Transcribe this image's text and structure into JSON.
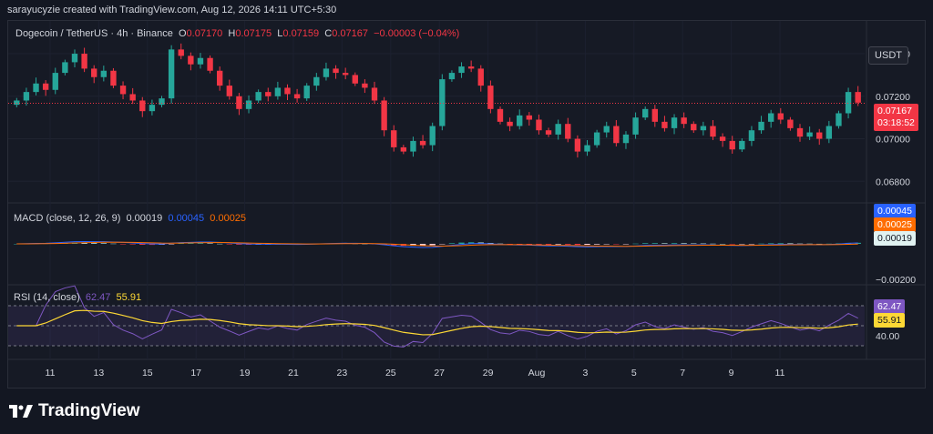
{
  "header": {
    "text": "sarayucyzie created with TradingView.com, Aug 12, 2026 14:11 UTC+5:30"
  },
  "legend": {
    "symbol": "Dogecoin / TetherUS · 4h · Binance",
    "o_label": "O",
    "o": "0.07170",
    "h_label": "H",
    "h": "0.07175",
    "l_label": "L",
    "l": "0.07159",
    "c_label": "C",
    "c": "0.07167",
    "change": "−0.00003 (−0.04%)"
  },
  "currency": "USDT",
  "price_axis": [
    "0.07400",
    "0.07200",
    "0.07000",
    "0.06800"
  ],
  "last_price": {
    "value": "0.07167",
    "countdown": "03:18:52"
  },
  "macd": {
    "label": "MACD (close, 12, 26, 9)",
    "hist": "0.00019",
    "macd": "0.00045",
    "signal": "0.00025",
    "axis": "−0.00200"
  },
  "rsi": {
    "label": "RSI (14, close)",
    "value": "62.47",
    "ma": "55.91",
    "axis": "40.00"
  },
  "x_axis": [
    "11",
    "13",
    "15",
    "17",
    "19",
    "21",
    "23",
    "25",
    "27",
    "29",
    "Aug",
    "3",
    "5",
    "7",
    "9",
    "11"
  ],
  "colors": {
    "up": "#26a69a",
    "down": "#f23645",
    "macd": "#2962ff",
    "signal": "#ff6d00",
    "rsi": "#7e57c2",
    "rsi_ma": "#fdd835"
  },
  "footer": {
    "brand": "TradingView"
  },
  "chart_data": {
    "type": "candlestick",
    "symbol": "Dogecoin / TetherUS",
    "interval": "4h",
    "ylim": [
      0.0672,
      0.0752
    ],
    "close_series": [
      0.0718,
      0.0722,
      0.0726,
      0.0723,
      0.0731,
      0.0736,
      0.074,
      0.0733,
      0.0729,
      0.0732,
      0.0725,
      0.0721,
      0.0718,
      0.0713,
      0.0716,
      0.0719,
      0.0742,
      0.0739,
      0.0735,
      0.0738,
      0.0732,
      0.0725,
      0.072,
      0.0714,
      0.0718,
      0.0722,
      0.072,
      0.0724,
      0.0721,
      0.0719,
      0.0725,
      0.0729,
      0.0733,
      0.0731,
      0.073,
      0.0726,
      0.0724,
      0.0718,
      0.0704,
      0.0696,
      0.0694,
      0.0699,
      0.0697,
      0.0706,
      0.0728,
      0.0731,
      0.0734,
      0.0733,
      0.0725,
      0.0714,
      0.0708,
      0.0706,
      0.0711,
      0.0709,
      0.0704,
      0.0702,
      0.0707,
      0.07,
      0.0694,
      0.0697,
      0.0703,
      0.0706,
      0.0698,
      0.0702,
      0.071,
      0.0714,
      0.0708,
      0.0705,
      0.071,
      0.0707,
      0.0704,
      0.0706,
      0.0701,
      0.0699,
      0.0695,
      0.0699,
      0.0704,
      0.0708,
      0.0712,
      0.0709,
      0.0705,
      0.0701,
      0.0703,
      0.07,
      0.0706,
      0.0712,
      0.0722,
      0.0717
    ],
    "macd_values": {
      "hist": 0.00019,
      "macd": 0.00045,
      "signal": 0.00025
    },
    "rsi_values": {
      "rsi": 62.47,
      "ma": 55.91
    }
  }
}
